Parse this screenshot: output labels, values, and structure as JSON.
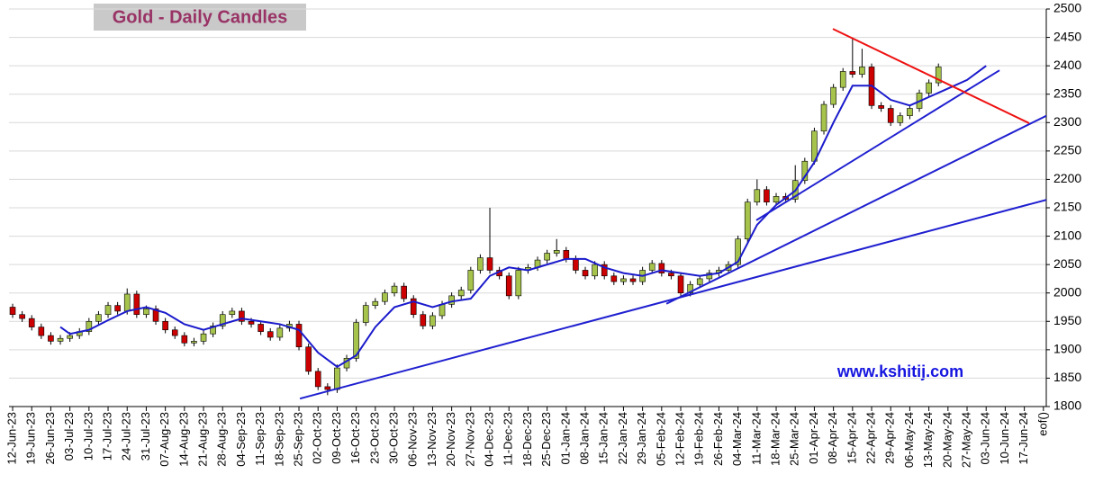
{
  "chart_data": {
    "type": "candlestick",
    "title": "Gold - Daily Candles",
    "annotation": "www.kshitij.com",
    "categories": [
      "12-Jun-23",
      "19-Jun-23",
      "26-Jun-23",
      "03-Jul-23",
      "10-Jul-23",
      "17-Jul-23",
      "24-Jul-23",
      "31-Jul-23",
      "07-Aug-23",
      "14-Aug-23",
      "21-Aug-23",
      "28-Aug-23",
      "04-Sep-23",
      "11-Sep-23",
      "18-Sep-23",
      "25-Sep-23",
      "02-Oct-23",
      "09-Oct-23",
      "16-Oct-23",
      "23-Oct-23",
      "30-Oct-23",
      "06-Nov-23",
      "13-Nov-23",
      "20-Nov-23",
      "27-Nov-23",
      "04-Dec-23",
      "11-Dec-23",
      "18-Dec-23",
      "25-Dec-23",
      "01-Jan-24",
      "08-Jan-24",
      "15-Jan-24",
      "22-Jan-24",
      "29-Jan-24",
      "05-Feb-24",
      "12-Feb-24",
      "19-Feb-24",
      "26-Feb-24",
      "04-Mar-24",
      "11-Mar-24",
      "18-Mar-24",
      "25-Mar-24",
      "01-Apr-24",
      "08-Apr-24",
      "15-Apr-24",
      "22-Apr-24",
      "29-Apr-24",
      "06-May-24",
      "13-May-24",
      "20-May-24",
      "27-May-24",
      "03-Jun-24",
      "10-Jun-24",
      "17-Jun-24",
      "eof()"
    ],
    "xlim": [
      -0.19,
      54.15
    ],
    "ylim": [
      1800,
      2500
    ],
    "yticks": [
      1800,
      1850,
      1900,
      1950,
      2000,
      2050,
      2100,
      2150,
      2200,
      2250,
      2300,
      2350,
      2400,
      2450,
      2500
    ],
    "grid": true,
    "up_color": "#a6c34c",
    "down_color": "#cc0000",
    "candle_x": [
      0,
      0.5,
      1,
      1.5,
      2,
      2.5,
      3,
      3.5,
      4,
      4.5,
      5,
      5.5,
      6,
      6.5,
      7,
      7.5,
      8,
      8.5,
      9,
      9.5,
      10,
      10.5,
      11,
      11.5,
      12,
      12.5,
      13,
      13.5,
      14,
      14.5,
      15,
      15.5,
      16,
      16.5,
      17,
      17.5,
      18,
      18.5,
      19,
      19.5,
      20,
      20.5,
      21,
      21.5,
      22,
      22.5,
      23,
      23.5,
      24,
      24.5,
      25,
      25.5,
      26,
      26.5,
      27,
      27.5,
      28,
      28.5,
      29,
      29.5,
      30,
      30.5,
      31,
      31.5,
      32,
      32.5,
      33,
      33.5,
      34,
      34.5,
      35,
      35.5,
      36,
      36.5,
      37,
      37.5,
      38,
      38.5,
      39,
      39.5,
      40,
      40.5,
      41,
      41.5,
      42,
      42.5,
      43,
      43.5,
      44,
      44.5,
      45,
      45.5,
      46,
      46.5,
      47,
      47.5,
      48,
      48.5
    ],
    "candles": [
      [
        1975,
        1981,
        1956,
        1962
      ],
      [
        1962,
        1968,
        1949,
        1955
      ],
      [
        1955,
        1961,
        1934,
        1940
      ],
      [
        1940,
        1946,
        1919,
        1925
      ],
      [
        1925,
        1931,
        1909,
        1915
      ],
      [
        1915,
        1926,
        1909,
        1920
      ],
      [
        1920,
        1931,
        1914,
        1925
      ],
      [
        1925,
        1938,
        1919,
        1932
      ],
      [
        1932,
        1956,
        1926,
        1950
      ],
      [
        1950,
        1968,
        1944,
        1962
      ],
      [
        1962,
        1984,
        1956,
        1978
      ],
      [
        1978,
        1984,
        1962,
        1968
      ],
      [
        1968,
        2008,
        1962,
        1998
      ],
      [
        1998,
        2004,
        1956,
        1962
      ],
      [
        1962,
        1978,
        1956,
        1972
      ],
      [
        1972,
        1978,
        1944,
        1950
      ],
      [
        1950,
        1956,
        1929,
        1935
      ],
      [
        1935,
        1941,
        1919,
        1925
      ],
      [
        1925,
        1931,
        1906,
        1912
      ],
      [
        1912,
        1921,
        1906,
        1915
      ],
      [
        1915,
        1934,
        1909,
        1928
      ],
      [
        1928,
        1948,
        1922,
        1942
      ],
      [
        1942,
        1968,
        1936,
        1962
      ],
      [
        1962,
        1974,
        1956,
        1968
      ],
      [
        1968,
        1974,
        1944,
        1950
      ],
      [
        1950,
        1956,
        1939,
        1945
      ],
      [
        1945,
        1951,
        1926,
        1932
      ],
      [
        1932,
        1938,
        1916,
        1922
      ],
      [
        1922,
        1944,
        1916,
        1938
      ],
      [
        1938,
        1951,
        1932,
        1945
      ],
      [
        1945,
        1951,
        1899,
        1905
      ],
      [
        1905,
        1911,
        1856,
        1862
      ],
      [
        1862,
        1868,
        1829,
        1835
      ],
      [
        1835,
        1841,
        1820,
        1830
      ],
      [
        1830,
        1874,
        1824,
        1868
      ],
      [
        1868,
        1891,
        1862,
        1885
      ],
      [
        1885,
        1954,
        1879,
        1948
      ],
      [
        1948,
        1984,
        1942,
        1978
      ],
      [
        1978,
        1991,
        1972,
        1985
      ],
      [
        1985,
        2006,
        1979,
        2000
      ],
      [
        2000,
        2018,
        1994,
        2012
      ],
      [
        2012,
        2018,
        1984,
        1990
      ],
      [
        1990,
        1996,
        1956,
        1962
      ],
      [
        1962,
        1968,
        1936,
        1942
      ],
      [
        1942,
        1966,
        1936,
        1960
      ],
      [
        1960,
        1986,
        1954,
        1980
      ],
      [
        1980,
        2001,
        1974,
        1995
      ],
      [
        1995,
        2011,
        1989,
        2005
      ],
      [
        2005,
        2046,
        1999,
        2040
      ],
      [
        2040,
        2068,
        2034,
        2062
      ],
      [
        2062,
        2150,
        2034,
        2040
      ],
      [
        2040,
        2046,
        2024,
        2030
      ],
      [
        2030,
        2036,
        1989,
        1995
      ],
      [
        1995,
        2046,
        1989,
        2040
      ],
      [
        2040,
        2051,
        2034,
        2045
      ],
      [
        2045,
        2064,
        2039,
        2058
      ],
      [
        2058,
        2076,
        2052,
        2070
      ],
      [
        2070,
        2095,
        2064,
        2075
      ],
      [
        2075,
        2081,
        2054,
        2060
      ],
      [
        2060,
        2066,
        2034,
        2040
      ],
      [
        2040,
        2046,
        2024,
        2030
      ],
      [
        2030,
        2056,
        2024,
        2050
      ],
      [
        2050,
        2056,
        2024,
        2030
      ],
      [
        2030,
        2036,
        2014,
        2020
      ],
      [
        2020,
        2031,
        2014,
        2025
      ],
      [
        2025,
        2031,
        2014,
        2020
      ],
      [
        2020,
        2046,
        2014,
        2040
      ],
      [
        2040,
        2058,
        2034,
        2052
      ],
      [
        2052,
        2058,
        2029,
        2035
      ],
      [
        2035,
        2041,
        2024,
        2030
      ],
      [
        2030,
        2036,
        1994,
        2000
      ],
      [
        2000,
        2021,
        1994,
        2015
      ],
      [
        2015,
        2031,
        2009,
        2025
      ],
      [
        2025,
        2041,
        2019,
        2035
      ],
      [
        2035,
        2046,
        2029,
        2040
      ],
      [
        2040,
        2056,
        2034,
        2050
      ],
      [
        2050,
        2101,
        2044,
        2095
      ],
      [
        2095,
        2166,
        2089,
        2160
      ],
      [
        2160,
        2200,
        2154,
        2182
      ],
      [
        2182,
        2188,
        2154,
        2160
      ],
      [
        2160,
        2176,
        2154,
        2170
      ],
      [
        2170,
        2176,
        2159,
        2165
      ],
      [
        2165,
        2225,
        2159,
        2198
      ],
      [
        2198,
        2238,
        2192,
        2232
      ],
      [
        2232,
        2291,
        2226,
        2285
      ],
      [
        2285,
        2338,
        2279,
        2332
      ],
      [
        2332,
        2368,
        2326,
        2362
      ],
      [
        2362,
        2396,
        2356,
        2390
      ],
      [
        2390,
        2450,
        2379,
        2385
      ],
      [
        2385,
        2430,
        2379,
        2398
      ],
      [
        2398,
        2404,
        2324,
        2330
      ],
      [
        2330,
        2336,
        2319,
        2325
      ],
      [
        2325,
        2331,
        2294,
        2300
      ],
      [
        2300,
        2318,
        2294,
        2312
      ],
      [
        2312,
        2331,
        2306,
        2325
      ],
      [
        2325,
        2358,
        2319,
        2352
      ],
      [
        2352,
        2376,
        2346,
        2370
      ],
      [
        2370,
        2404,
        2364,
        2398
      ]
    ],
    "moving_average": {
      "color": "#1a1acc",
      "x": [
        2.5,
        3,
        4,
        5,
        6,
        7,
        8,
        9,
        10,
        11,
        12,
        13,
        14,
        15,
        16,
        17,
        18,
        19,
        20,
        21,
        22,
        23,
        24,
        25,
        26,
        27,
        28,
        29,
        30,
        31,
        32,
        33,
        34,
        35,
        36,
        37,
        38,
        39,
        40,
        41,
        42,
        43,
        44,
        45,
        46,
        47,
        48,
        49,
        50,
        51
      ],
      "values": [
        1940,
        1928,
        1935,
        1952,
        1968,
        1975,
        1965,
        1945,
        1935,
        1945,
        1955,
        1950,
        1945,
        1935,
        1895,
        1870,
        1890,
        1940,
        1975,
        1985,
        1975,
        1985,
        1990,
        2030,
        2045,
        2040,
        2050,
        2060,
        2060,
        2045,
        2035,
        2030,
        2040,
        2035,
        2030,
        2035,
        2055,
        2120,
        2155,
        2180,
        2230,
        2300,
        2365,
        2365,
        2340,
        2330,
        2345,
        2360,
        2375,
        2400
      ]
    },
    "trendlines": [
      {
        "color": "#1f1fd0",
        "x": [
          15.05,
          54.15
        ],
        "values": [
          1814,
          2164
        ]
      },
      {
        "color": "#1f1fd0",
        "x": [
          34.25,
          54.15
        ],
        "values": [
          1981,
          2312
        ]
      },
      {
        "color": "#1f1fd0",
        "x": [
          38.96,
          51.7
        ],
        "values": [
          2128,
          2392
        ]
      },
      {
        "color": "#ee1111",
        "x": [
          42.97,
          53.25
        ],
        "values": [
          2465,
          2299
        ]
      }
    ]
  }
}
